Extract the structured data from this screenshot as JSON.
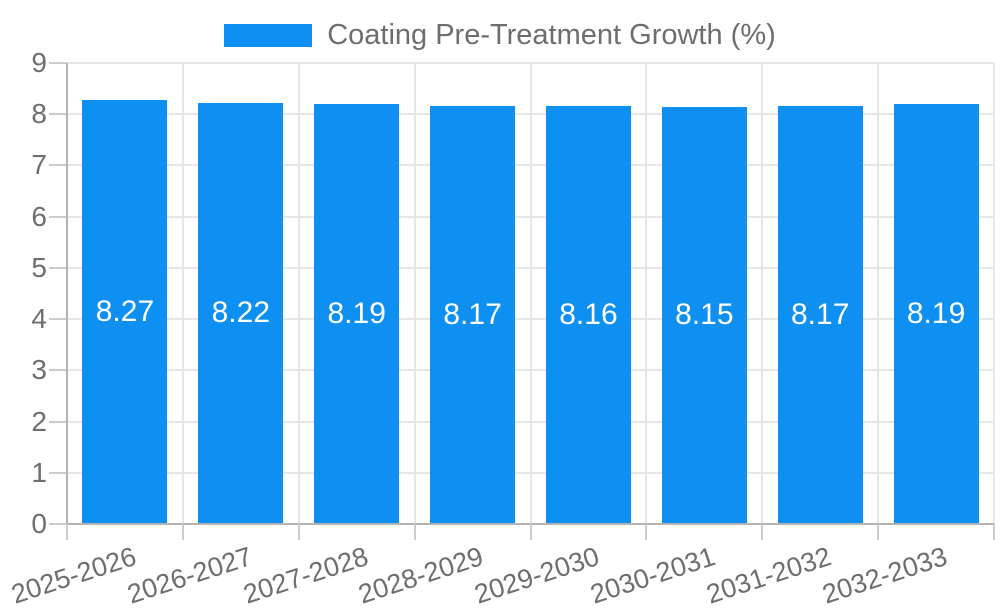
{
  "chart_data": {
    "type": "bar",
    "title": "",
    "legend_position": "top",
    "legend": [
      {
        "label": "Coating Pre-Treatment Growth (%)",
        "color": "#0d90f2"
      }
    ],
    "categories": [
      "2025-2026",
      "2026-2027",
      "2027-2028",
      "2028-2029",
      "2029-2030",
      "2030-2031",
      "2031-2032",
      "2032-2033"
    ],
    "series": [
      {
        "name": "Coating Pre-Treatment Growth (%)",
        "values": [
          8.27,
          8.22,
          8.19,
          8.17,
          8.16,
          8.15,
          8.17,
          8.19
        ]
      }
    ],
    "value_labels": [
      "8.27",
      "8.22",
      "8.19",
      "8.17",
      "8.16",
      "8.15",
      "8.17",
      "8.19"
    ],
    "xlabel": "",
    "ylabel": "",
    "ylim": [
      0,
      9
    ],
    "yticks": [
      0,
      1,
      2,
      3,
      4,
      5,
      6,
      7,
      8,
      9
    ],
    "grid": true
  },
  "colors": {
    "bar": "#0d90f2",
    "grid": "#e6e6e6",
    "axis": "#b3b3b3",
    "tick": "#cccccc",
    "text": "#6e6e6e",
    "value_label": "#ffffff",
    "background": "#ffffff"
  }
}
